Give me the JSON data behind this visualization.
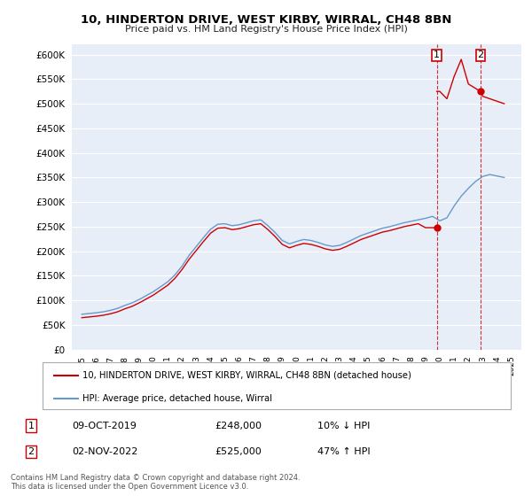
{
  "title": "10, HINDERTON DRIVE, WEST KIRBY, WIRRAL, CH48 8BN",
  "subtitle": "Price paid vs. HM Land Registry's House Price Index (HPI)",
  "property_label": "10, HINDERTON DRIVE, WEST KIRBY, WIRRAL, CH48 8BN (detached house)",
  "hpi_label": "HPI: Average price, detached house, Wirral",
  "footer": "Contains HM Land Registry data © Crown copyright and database right 2024.\nThis data is licensed under the Open Government Licence v3.0.",
  "sale1_date": "09-OCT-2019",
  "sale1_price": 248000,
  "sale1_note": "10% ↓ HPI",
  "sale2_date": "02-NOV-2022",
  "sale2_price": 525000,
  "sale2_note": "47% ↑ HPI",
  "sale1_year": 2019.79,
  "sale2_year": 2022.84,
  "property_color": "#cc0000",
  "hpi_color": "#6699cc",
  "background_color": "#e8eef8",
  "yticks": [
    0,
    50000,
    100000,
    150000,
    200000,
    250000,
    300000,
    350000,
    400000,
    450000,
    500000,
    550000,
    600000
  ],
  "xlim_start": 1994.3,
  "xlim_end": 2025.7,
  "ylim_top": 620000,
  "hpi_years": [
    1995.0,
    1995.5,
    1996.0,
    1996.5,
    1997.0,
    1997.5,
    1998.0,
    1998.5,
    1999.0,
    1999.5,
    2000.0,
    2000.5,
    2001.0,
    2001.5,
    2002.0,
    2002.5,
    2003.0,
    2003.5,
    2004.0,
    2004.5,
    2005.0,
    2005.5,
    2006.0,
    2006.5,
    2007.0,
    2007.5,
    2008.0,
    2008.5,
    2009.0,
    2009.5,
    2010.0,
    2010.5,
    2011.0,
    2011.5,
    2012.0,
    2012.5,
    2013.0,
    2013.5,
    2014.0,
    2014.5,
    2015.0,
    2015.5,
    2016.0,
    2016.5,
    2017.0,
    2017.5,
    2018.0,
    2018.5,
    2019.0,
    2019.5,
    2020.0,
    2020.5,
    2021.0,
    2021.5,
    2022.0,
    2022.5,
    2023.0,
    2023.5,
    2024.0,
    2024.5
  ],
  "hpi_values": [
    72000,
    73500,
    75000,
    77000,
    80000,
    84000,
    90000,
    95000,
    102000,
    110000,
    118000,
    128000,
    138000,
    152000,
    170000,
    192000,
    210000,
    228000,
    245000,
    255000,
    256000,
    252000,
    254000,
    258000,
    262000,
    264000,
    252000,
    238000,
    222000,
    215000,
    220000,
    224000,
    222000,
    218000,
    213000,
    210000,
    212000,
    218000,
    225000,
    232000,
    237000,
    242000,
    247000,
    250000,
    254000,
    258000,
    261000,
    264000,
    267000,
    271000,
    262000,
    268000,
    292000,
    312000,
    328000,
    342000,
    352000,
    356000,
    353000,
    350000
  ],
  "prop_years": [
    1995.0,
    1995.5,
    1996.0,
    1996.5,
    1997.0,
    1997.5,
    1998.0,
    1998.5,
    1999.0,
    1999.5,
    2000.0,
    2000.5,
    2001.0,
    2001.5,
    2002.0,
    2002.5,
    2003.0,
    2003.5,
    2004.0,
    2004.5,
    2005.0,
    2005.5,
    2006.0,
    2006.5,
    2007.0,
    2007.5,
    2008.0,
    2008.5,
    2009.0,
    2009.5,
    2010.0,
    2010.5,
    2011.0,
    2011.5,
    2012.0,
    2012.5,
    2013.0,
    2013.5,
    2014.0,
    2014.5,
    2015.0,
    2015.5,
    2016.0,
    2016.5,
    2017.0,
    2017.5,
    2018.0,
    2018.5,
    2019.0,
    2019.79,
    2019.79,
    2020.0,
    2020.5,
    2021.0,
    2021.5,
    2022.0,
    2022.84,
    2022.84,
    2023.0,
    2023.5,
    2024.0,
    2024.5
  ],
  "prop_values": [
    65000,
    66500,
    68000,
    70000,
    73000,
    77000,
    83000,
    88000,
    95000,
    103000,
    111000,
    121000,
    131000,
    145000,
    163000,
    184000,
    202000,
    220000,
    237000,
    247000,
    248000,
    244000,
    246000,
    250000,
    254000,
    256000,
    244000,
    230000,
    214000,
    207000,
    212000,
    216000,
    214000,
    210000,
    205000,
    202000,
    204000,
    210000,
    217000,
    224000,
    229000,
    234000,
    239000,
    242000,
    246000,
    250000,
    253000,
    256000,
    248000,
    248000,
    525000,
    525000,
    510000,
    555000,
    590000,
    540000,
    525000,
    525000,
    515000,
    510000,
    505000,
    500000
  ]
}
